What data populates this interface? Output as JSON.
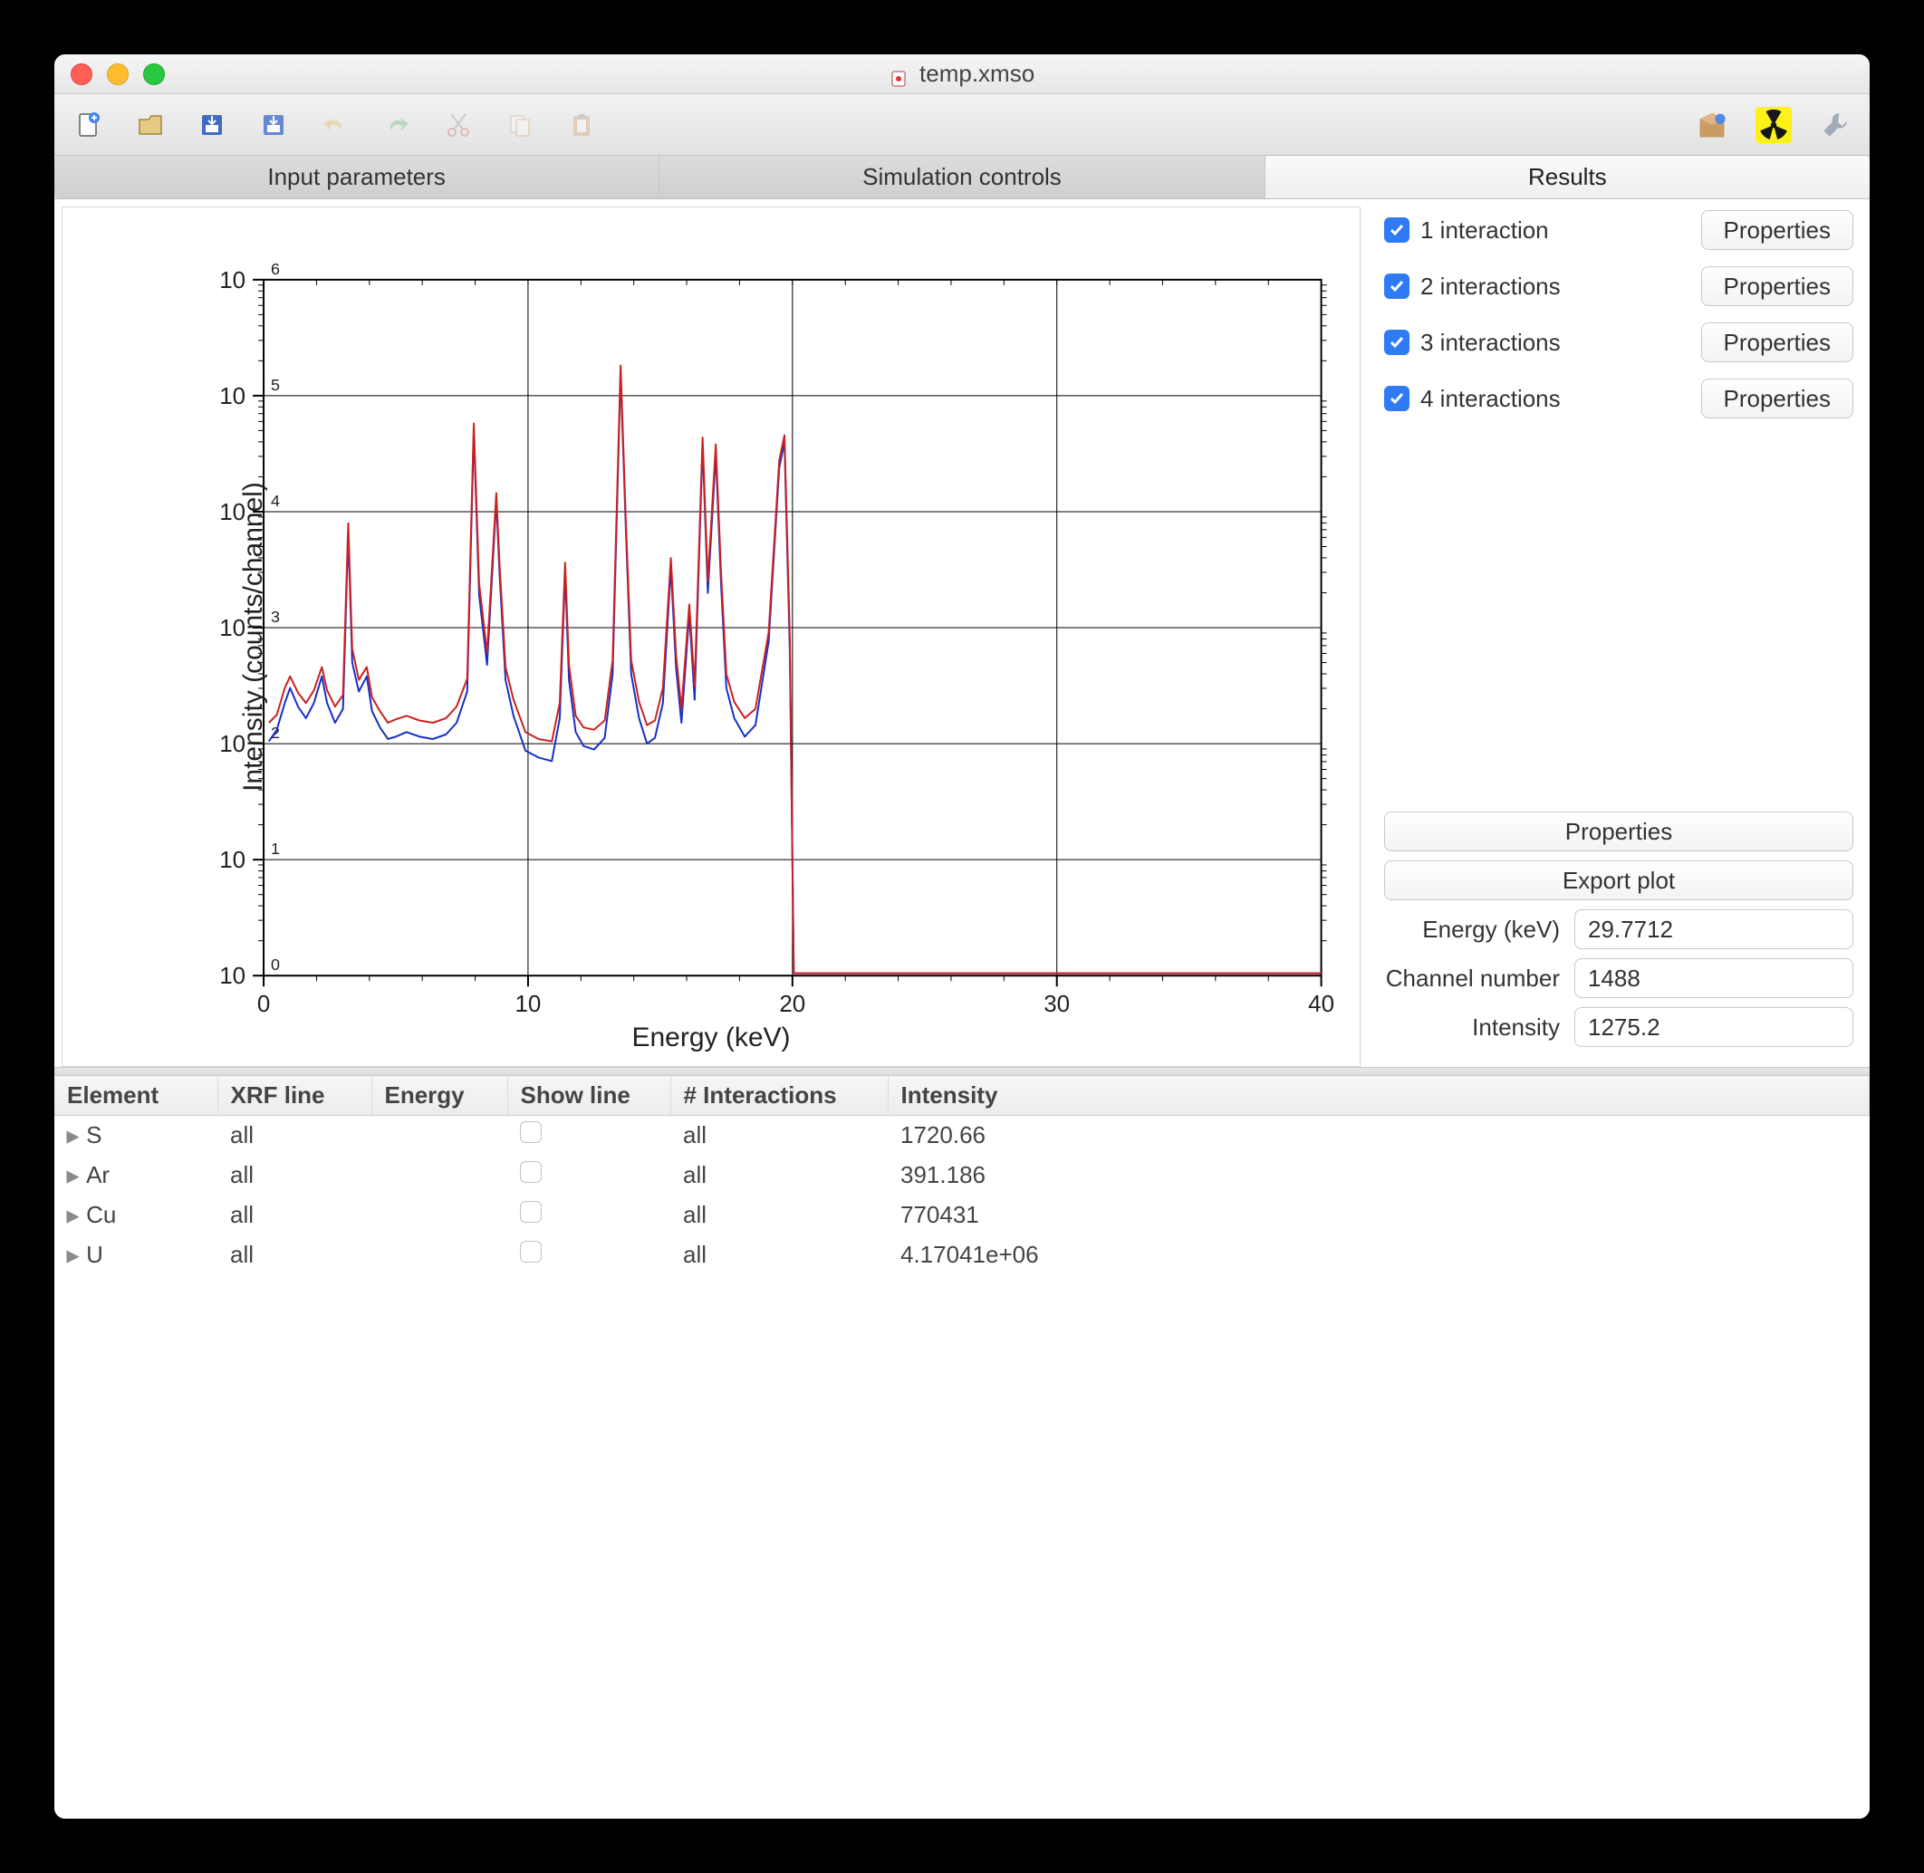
{
  "window": {
    "title": "temp.xmso"
  },
  "tabs": {
    "items": [
      {
        "label": "Input parameters"
      },
      {
        "label": "Simulation controls"
      },
      {
        "label": "Results"
      }
    ],
    "active_index": 2
  },
  "chart": {
    "type": "line",
    "title": "",
    "xlabel": "Energy (keV)",
    "ylabel": "Intensity (counts/channel)",
    "xlim": [
      0,
      40
    ],
    "xtick_step": 10,
    "ylim_log10": [
      0,
      6
    ],
    "ytick_log10": [
      0,
      1,
      2,
      3,
      4,
      5,
      6
    ],
    "background_color": "#ffffff",
    "grid_color": "#000000",
    "axis_color": "#000000",
    "line_width": 2,
    "label_fontsize": 30,
    "tick_fontsize": 26,
    "series": [
      {
        "name": "blue",
        "color": "#1530c4",
        "points": [
          [
            0.2,
            2.02
          ],
          [
            0.5,
            2.12
          ],
          [
            0.8,
            2.35
          ],
          [
            1.0,
            2.48
          ],
          [
            1.3,
            2.32
          ],
          [
            1.6,
            2.22
          ],
          [
            1.9,
            2.35
          ],
          [
            2.2,
            2.58
          ],
          [
            2.4,
            2.35
          ],
          [
            2.7,
            2.18
          ],
          [
            3.0,
            2.3
          ],
          [
            3.2,
            3.82
          ],
          [
            3.35,
            2.7
          ],
          [
            3.6,
            2.45
          ],
          [
            3.9,
            2.58
          ],
          [
            4.1,
            2.28
          ],
          [
            4.4,
            2.14
          ],
          [
            4.7,
            2.04
          ],
          [
            5.0,
            2.06
          ],
          [
            5.4,
            2.1
          ],
          [
            5.9,
            2.06
          ],
          [
            6.4,
            2.04
          ],
          [
            6.9,
            2.08
          ],
          [
            7.3,
            2.18
          ],
          [
            7.7,
            2.45
          ],
          [
            7.95,
            4.7
          ],
          [
            8.15,
            3.28
          ],
          [
            8.45,
            2.68
          ],
          [
            8.8,
            4.1
          ],
          [
            8.92,
            3.48
          ],
          [
            9.15,
            2.55
          ],
          [
            9.45,
            2.24
          ],
          [
            9.9,
            1.94
          ],
          [
            10.4,
            1.88
          ],
          [
            10.9,
            1.85
          ],
          [
            11.2,
            2.22
          ],
          [
            11.4,
            3.48
          ],
          [
            11.55,
            2.55
          ],
          [
            11.8,
            2.1
          ],
          [
            12.1,
            1.98
          ],
          [
            12.5,
            1.95
          ],
          [
            12.9,
            2.05
          ],
          [
            13.2,
            2.6
          ],
          [
            13.5,
            5.2
          ],
          [
            13.7,
            3.85
          ],
          [
            13.9,
            2.6
          ],
          [
            14.2,
            2.22
          ],
          [
            14.5,
            2.0
          ],
          [
            14.8,
            2.05
          ],
          [
            15.1,
            2.35
          ],
          [
            15.4,
            3.52
          ],
          [
            15.6,
            2.65
          ],
          [
            15.8,
            2.18
          ],
          [
            16.1,
            3.12
          ],
          [
            16.3,
            2.38
          ],
          [
            16.6,
            4.58
          ],
          [
            16.8,
            3.3
          ],
          [
            17.1,
            4.5
          ],
          [
            17.3,
            3.38
          ],
          [
            17.5,
            2.48
          ],
          [
            17.8,
            2.22
          ],
          [
            18.2,
            2.06
          ],
          [
            18.6,
            2.16
          ],
          [
            19.1,
            2.88
          ],
          [
            19.5,
            4.38
          ],
          [
            19.7,
            4.6
          ],
          [
            19.9,
            2.8
          ],
          [
            20.05,
            0.02
          ],
          [
            20.3,
            0.02
          ],
          [
            22,
            0.02
          ],
          [
            25,
            0.02
          ],
          [
            30,
            0.02
          ],
          [
            35,
            0.02
          ],
          [
            40,
            0.02
          ]
        ]
      },
      {
        "name": "red",
        "color": "#cc2020",
        "points": [
          [
            0.2,
            2.18
          ],
          [
            0.5,
            2.25
          ],
          [
            0.8,
            2.48
          ],
          [
            1.0,
            2.58
          ],
          [
            1.3,
            2.44
          ],
          [
            1.6,
            2.35
          ],
          [
            1.9,
            2.46
          ],
          [
            2.2,
            2.66
          ],
          [
            2.4,
            2.46
          ],
          [
            2.7,
            2.32
          ],
          [
            3.0,
            2.42
          ],
          [
            3.2,
            3.9
          ],
          [
            3.35,
            2.82
          ],
          [
            3.6,
            2.55
          ],
          [
            3.9,
            2.66
          ],
          [
            4.1,
            2.4
          ],
          [
            4.4,
            2.28
          ],
          [
            4.7,
            2.18
          ],
          [
            5.0,
            2.21
          ],
          [
            5.4,
            2.24
          ],
          [
            5.9,
            2.2
          ],
          [
            6.4,
            2.18
          ],
          [
            6.9,
            2.22
          ],
          [
            7.3,
            2.32
          ],
          [
            7.7,
            2.56
          ],
          [
            7.95,
            4.76
          ],
          [
            8.15,
            3.38
          ],
          [
            8.45,
            2.78
          ],
          [
            8.8,
            4.16
          ],
          [
            8.92,
            3.56
          ],
          [
            9.15,
            2.66
          ],
          [
            9.45,
            2.38
          ],
          [
            9.9,
            2.1
          ],
          [
            10.4,
            2.04
          ],
          [
            10.9,
            2.02
          ],
          [
            11.2,
            2.35
          ],
          [
            11.4,
            3.56
          ],
          [
            11.55,
            2.68
          ],
          [
            11.8,
            2.24
          ],
          [
            12.1,
            2.14
          ],
          [
            12.5,
            2.12
          ],
          [
            12.9,
            2.2
          ],
          [
            13.2,
            2.72
          ],
          [
            13.5,
            5.26
          ],
          [
            13.7,
            3.92
          ],
          [
            13.9,
            2.72
          ],
          [
            14.2,
            2.36
          ],
          [
            14.5,
            2.16
          ],
          [
            14.8,
            2.2
          ],
          [
            15.1,
            2.48
          ],
          [
            15.4,
            3.6
          ],
          [
            15.6,
            2.76
          ],
          [
            15.8,
            2.3
          ],
          [
            16.1,
            3.2
          ],
          [
            16.3,
            2.5
          ],
          [
            16.6,
            4.64
          ],
          [
            16.8,
            3.4
          ],
          [
            17.1,
            4.58
          ],
          [
            17.3,
            3.48
          ],
          [
            17.5,
            2.6
          ],
          [
            17.8,
            2.36
          ],
          [
            18.2,
            2.22
          ],
          [
            18.6,
            2.3
          ],
          [
            19.1,
            2.96
          ],
          [
            19.5,
            4.44
          ],
          [
            19.7,
            4.66
          ],
          [
            19.9,
            2.92
          ],
          [
            20.05,
            0.02
          ],
          [
            20.3,
            0.02
          ],
          [
            22,
            0.02
          ],
          [
            25,
            0.02
          ],
          [
            30,
            0.02
          ],
          [
            35,
            0.02
          ],
          [
            40,
            0.02
          ]
        ]
      }
    ]
  },
  "side": {
    "interactions": [
      {
        "label": "1 interaction",
        "checked": true,
        "btn": "Properties"
      },
      {
        "label": "2 interactions",
        "checked": true,
        "btn": "Properties"
      },
      {
        "label": "3 interactions",
        "checked": true,
        "btn": "Properties"
      },
      {
        "label": "4 interactions",
        "checked": true,
        "btn": "Properties"
      }
    ],
    "properties_btn": "Properties",
    "export_btn": "Export plot",
    "fields": {
      "energy_label": "Energy (keV)",
      "energy_value": "29.7712",
      "channel_label": "Channel number",
      "channel_value": "1488",
      "intensity_label": "Intensity",
      "intensity_value": "1275.2"
    }
  },
  "table": {
    "columns": [
      "Element",
      "XRF line",
      "Energy",
      "Show line",
      "# Interactions",
      "Intensity"
    ],
    "rows": [
      {
        "element": "S",
        "xrf": "all",
        "energy": "",
        "showline": false,
        "inter": "all",
        "intensity": "1720.66"
      },
      {
        "element": "Ar",
        "xrf": "all",
        "energy": "",
        "showline": false,
        "inter": "all",
        "intensity": "391.186"
      },
      {
        "element": "Cu",
        "xrf": "all",
        "energy": "",
        "showline": false,
        "inter": "all",
        "intensity": "770431"
      },
      {
        "element": "U",
        "xrf": "all",
        "energy": "",
        "showline": false,
        "inter": "all",
        "intensity": "4.17041e+06"
      }
    ]
  },
  "toolbar_icons": [
    "new-file-icon",
    "open-file-icon",
    "save-icon",
    "save-as-icon",
    "undo-icon",
    "redo-icon",
    "cut-icon",
    "copy-icon",
    "paste-icon"
  ],
  "right_toolbar_icons": [
    "pkg-icon",
    "radiation-icon",
    "wrench-icon"
  ],
  "colors": {
    "checkbox": "#2f7bf6",
    "radiation_bg": "#fff200"
  }
}
